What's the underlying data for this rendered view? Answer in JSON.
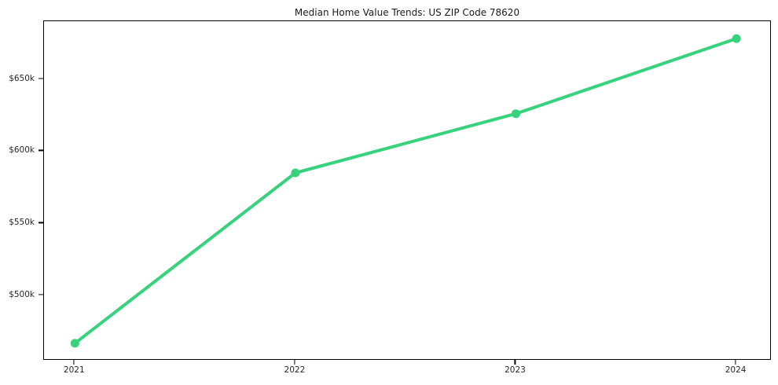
{
  "chart_data": {
    "type": "line",
    "title": "Median Home Value Trends: US ZIP Code 78620",
    "categories": [
      "2021",
      "2022",
      "2023",
      "2024"
    ],
    "series": [
      {
        "name": "Median home value",
        "values": [
          467000,
          585000,
          626000,
          678000
        ]
      }
    ],
    "xlabel": "",
    "ylabel": "",
    "y_ticks": [
      {
        "label": "$500k",
        "value": 500000
      },
      {
        "label": "$550k",
        "value": 550000
      },
      {
        "label": "$600k",
        "value": 600000
      },
      {
        "label": "$650k",
        "value": 650000
      }
    ],
    "ylim": [
      455000,
      690000
    ],
    "xlim_index": [
      -0.14,
      3.16
    ],
    "grid": false,
    "legend_position": "none",
    "line_color": "#36d27c",
    "marker": "circle",
    "marker_radius": 5.5,
    "line_width": 4,
    "axis_color": "#000000",
    "text_color": "#262626",
    "title_color": "#1a1a1a",
    "background_color": "#ffffff"
  }
}
